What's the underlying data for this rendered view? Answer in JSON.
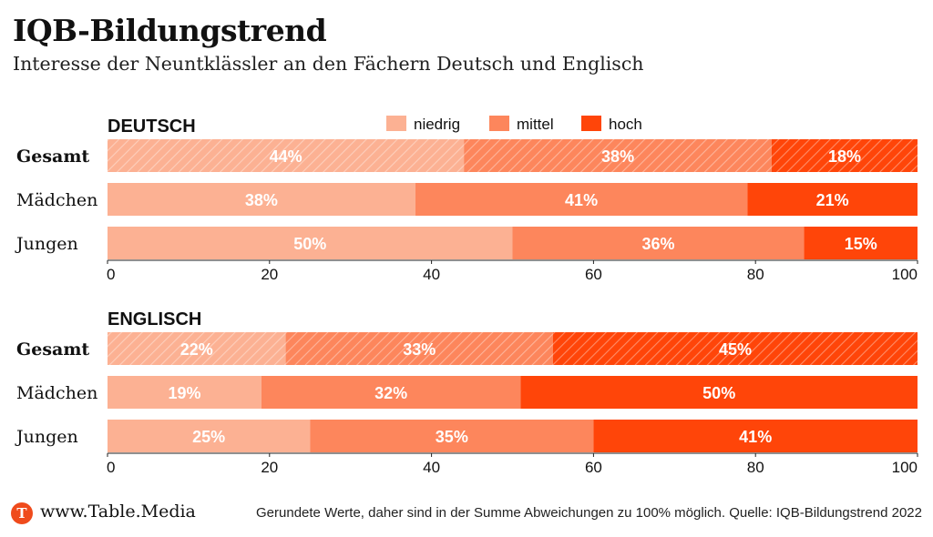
{
  "header": {
    "title": "IQB-Bildungstrend",
    "subtitle": "Interesse der Neuntklässler an den Fächern Deutsch und Englisch"
  },
  "legend": [
    {
      "label": "niedrig",
      "color": "#fcb193"
    },
    {
      "label": "mittel",
      "color": "#fd865c"
    },
    {
      "label": "hoch",
      "color": "#ff4509"
    }
  ],
  "chart_data": [
    {
      "type": "bar",
      "stacked": true,
      "orientation": "horizontal",
      "panel_title": "DEUTSCH",
      "categories": [
        "Gesamt",
        "Mädchen",
        "Jungen"
      ],
      "series": [
        {
          "name": "niedrig",
          "values": [
            44,
            38,
            50
          ],
          "labels": [
            "44%",
            "38%",
            "50%"
          ]
        },
        {
          "name": "mittel",
          "values": [
            38,
            41,
            36
          ],
          "labels": [
            "38%",
            "41%",
            "36%"
          ]
        },
        {
          "name": "hoch",
          "values": [
            18,
            21,
            15
          ],
          "labels": [
            "18%",
            "21%",
            "15%"
          ]
        }
      ],
      "xlim": [
        0,
        100
      ],
      "xticks": [
        "0",
        "20",
        "40",
        "60",
        "80",
        "100"
      ],
      "legend_position": "top",
      "highlighted_category": "Gesamt",
      "grid": false
    },
    {
      "type": "bar",
      "stacked": true,
      "orientation": "horizontal",
      "panel_title": "ENGLISCH",
      "categories": [
        "Gesamt",
        "Mädchen",
        "Jungen"
      ],
      "series": [
        {
          "name": "niedrig",
          "values": [
            22,
            19,
            25
          ],
          "labels": [
            "22%",
            "19%",
            "25%"
          ]
        },
        {
          "name": "mittel",
          "values": [
            33,
            32,
            35
          ],
          "labels": [
            "33%",
            "32%",
            "35%"
          ]
        },
        {
          "name": "hoch",
          "values": [
            45,
            50,
            41
          ],
          "labels": [
            "45%",
            "50%",
            "41%"
          ]
        }
      ],
      "xlim": [
        0,
        100
      ],
      "xticks": [
        "0",
        "20",
        "40",
        "60",
        "80",
        "100"
      ],
      "highlighted_category": "Gesamt",
      "grid": false
    }
  ],
  "footer": {
    "logo_letter": "T",
    "site": "www.Table.Media",
    "note": "Gerundete Werte, daher sind in der Summe Abweichungen zu 100% möglich. Quelle: IQB-Bildungstrend 2022"
  }
}
